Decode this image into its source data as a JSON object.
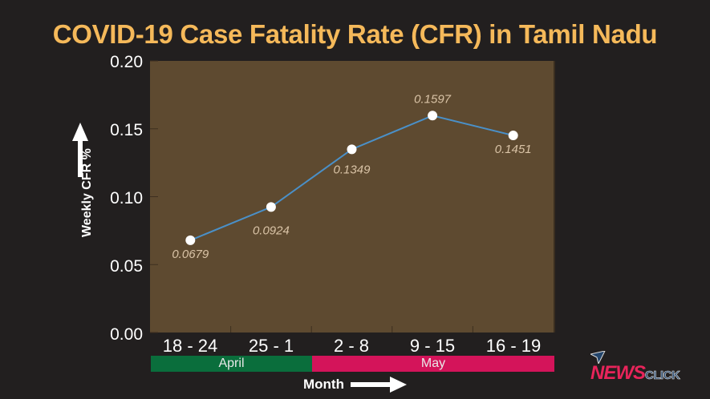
{
  "header": {
    "title": "COVID-19 Case Fatality Rate (CFR) in Tamil Nadu"
  },
  "axes": {
    "y_title": "Weekly CFR %",
    "x_title": "Month",
    "y_ticks": [
      "0.20",
      "0.15",
      "0.10",
      "0.05",
      "0.00"
    ],
    "x_ticks": [
      "18 - 24",
      "25 - 1",
      "2 - 8",
      "9 - 15",
      "16 - 19"
    ]
  },
  "month_bands": [
    {
      "label": "April",
      "color": "#0a6e3c"
    },
    {
      "label": "May",
      "color": "#d4145a"
    }
  ],
  "data_labels": [
    "0.0679",
    "0.0924",
    "0.1349",
    "0.1597",
    "0.1451"
  ],
  "branding": {
    "logo_news": "NEWS",
    "logo_click": "CLICK"
  },
  "colors": {
    "title": "#f5b95a",
    "plot_bg": "#5e4a30",
    "line": "#4a90c8",
    "background": "#221f1f"
  },
  "chart_data": {
    "type": "line",
    "title": "COVID-19 Case Fatality Rate (CFR) in Tamil Nadu",
    "xlabel": "Month",
    "ylabel": "Weekly CFR %",
    "categories": [
      "18 - 24",
      "25 - 1",
      "2 - 8",
      "9 - 15",
      "16 - 19"
    ],
    "category_groups": [
      {
        "label": "April",
        "categories": [
          "18 - 24",
          "25 - 1"
        ]
      },
      {
        "label": "May",
        "categories": [
          "2 - 8",
          "9 - 15",
          "16 - 19"
        ]
      }
    ],
    "series": [
      {
        "name": "Weekly CFR %",
        "values": [
          0.0679,
          0.0924,
          0.1349,
          0.1597,
          0.1451
        ]
      }
    ],
    "ylim": [
      0,
      0.2
    ],
    "yticks": [
      0,
      0.05,
      0.1,
      0.15,
      0.2
    ],
    "grid": false,
    "legend": "none"
  }
}
